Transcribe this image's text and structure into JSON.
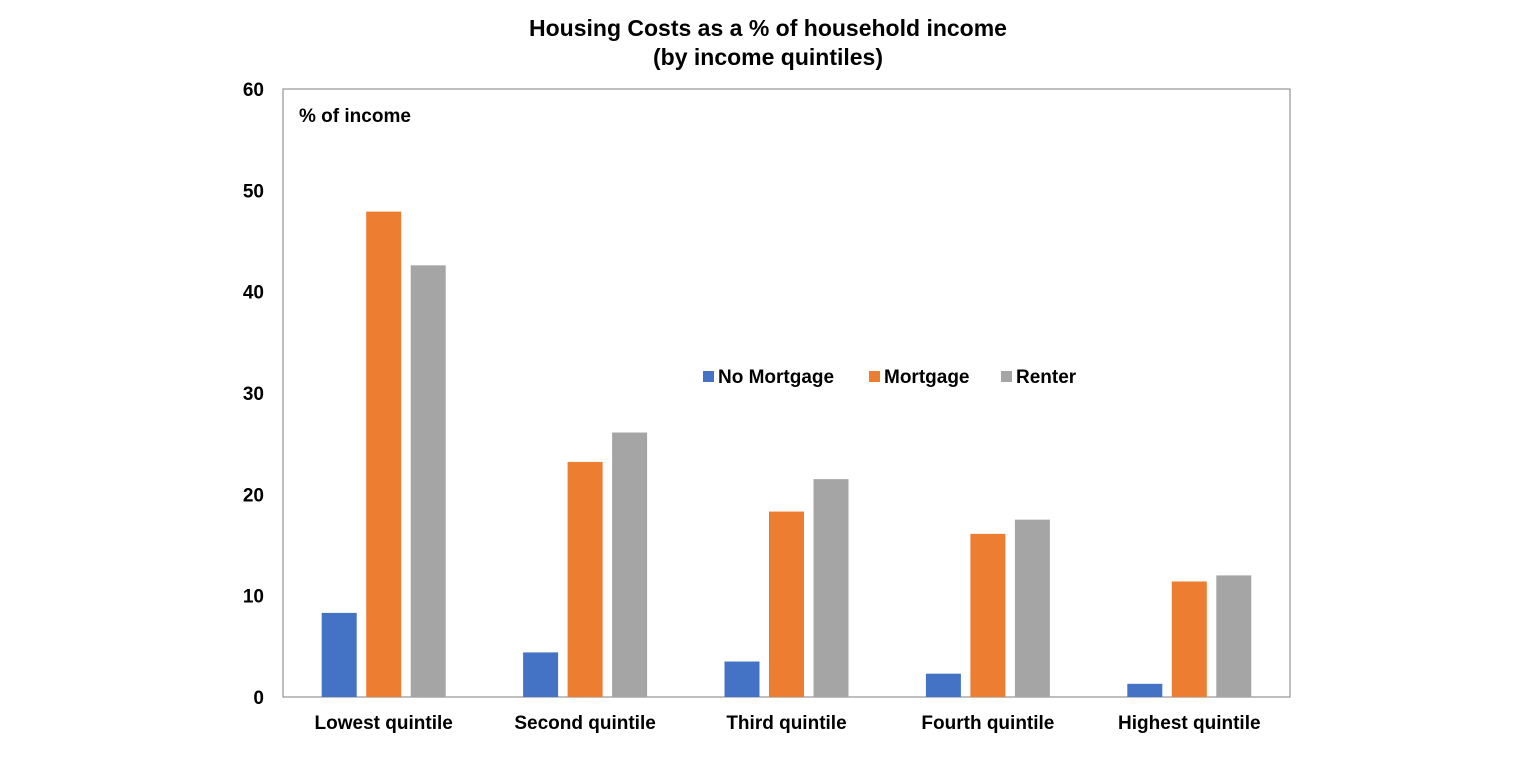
{
  "chart_data": {
    "type": "bar",
    "title_line1": "Housing Costs as a % of household income",
    "title_line2": "(by income quintiles)",
    "ylabel": "% of income",
    "xlabel": "",
    "ylim": [
      0,
      60
    ],
    "yticks": [
      "0",
      "10",
      "20",
      "30",
      "40",
      "50",
      "60"
    ],
    "grid": false,
    "legend_position": "center-right",
    "categories": [
      "Lowest quintile",
      "Second quintile",
      "Third quintile",
      "Fourth quintile",
      "Highest quintile"
    ],
    "series": [
      {
        "name": "No Mortgage",
        "color": "#4472C4",
        "values": [
          8.3,
          4.4,
          3.5,
          2.3,
          1.3
        ]
      },
      {
        "name": "Mortgage",
        "color": "#ED7D31",
        "values": [
          47.9,
          23.2,
          18.3,
          16.1,
          11.4
        ]
      },
      {
        "name": "Renter",
        "color": "#A5A5A5",
        "values": [
          42.6,
          26.1,
          21.5,
          17.5,
          12.0
        ]
      }
    ]
  }
}
